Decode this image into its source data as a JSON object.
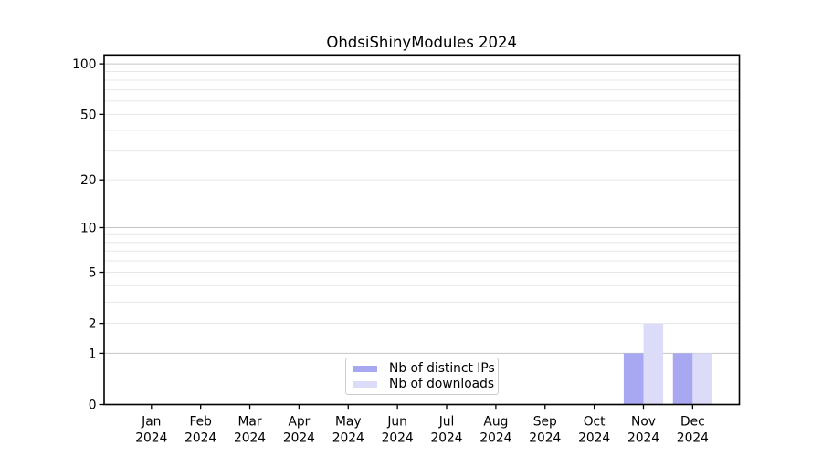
{
  "figure": {
    "background": "#ffffff"
  },
  "chart_data": {
    "type": "bar",
    "title": "OhdsiShinyModules 2024",
    "xlabel": "",
    "ylabel": "",
    "x_categories": [
      {
        "line1": "Jan",
        "line2": "2024"
      },
      {
        "line1": "Feb",
        "line2": "2024"
      },
      {
        "line1": "Mar",
        "line2": "2024"
      },
      {
        "line1": "Apr",
        "line2": "2024"
      },
      {
        "line1": "May",
        "line2": "2024"
      },
      {
        "line1": "Jun",
        "line2": "2024"
      },
      {
        "line1": "Jul",
        "line2": "2024"
      },
      {
        "line1": "Aug",
        "line2": "2024"
      },
      {
        "line1": "Sep",
        "line2": "2024"
      },
      {
        "line1": "Oct",
        "line2": "2024"
      },
      {
        "line1": "Nov",
        "line2": "2024"
      },
      {
        "line1": "Dec",
        "line2": "2024"
      }
    ],
    "series": [
      {
        "name": "Nb of distinct IPs",
        "color": "#a8a8f2",
        "values": [
          0,
          0,
          0,
          0,
          0,
          0,
          0,
          0,
          0,
          0,
          1,
          1
        ]
      },
      {
        "name": "Nb of downloads",
        "color": "#dcdcf9",
        "values": [
          0,
          0,
          0,
          0,
          0,
          0,
          0,
          0,
          0,
          0,
          2,
          1
        ]
      }
    ],
    "y_axis": {
      "scale": "log1p",
      "ylim": [
        0,
        113
      ],
      "labeled_ticks": [
        0,
        1,
        2,
        5,
        10,
        20,
        50,
        100
      ],
      "major_gridlines": [
        1,
        10,
        100
      ],
      "minor_gridlines": [
        2,
        3,
        4,
        5,
        6,
        7,
        8,
        9,
        20,
        30,
        40,
        50,
        60,
        70,
        80,
        90
      ]
    },
    "legend": {
      "position": "lower center",
      "entries": [
        "Nb of distinct IPs",
        "Nb of downloads"
      ]
    },
    "colors": {
      "major_grid": "#c4c4c4",
      "minor_grid": "#e7e7e7",
      "spine": "#000000",
      "tick": "#000000",
      "text": "#000000"
    },
    "grid": true
  }
}
